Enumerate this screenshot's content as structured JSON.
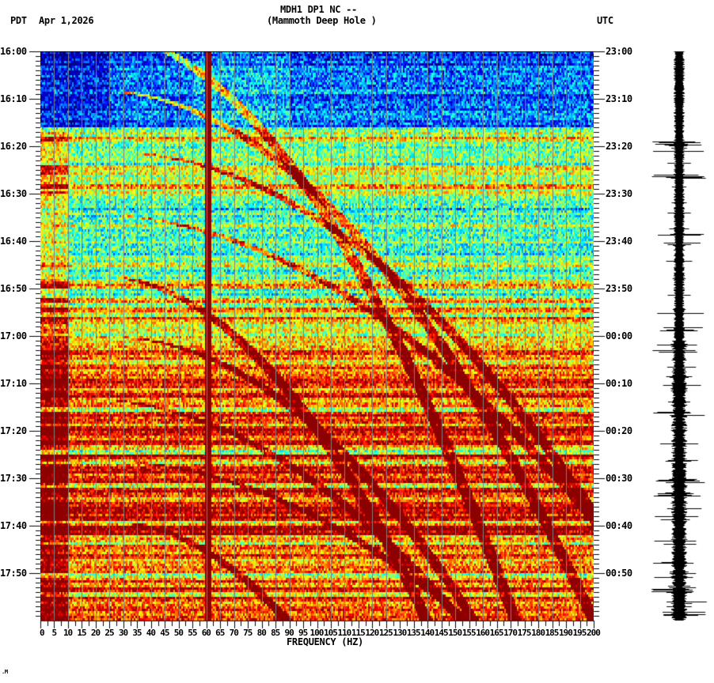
{
  "header": {
    "station_line": "MDH1 DP1 NC --",
    "station_name": "(Mammoth Deep Hole )",
    "left_tz": "PDT",
    "date": "Apr 1,2026",
    "right_tz": "UTC"
  },
  "footer": {
    "corner_mark": "ᴺ"
  },
  "colors": {
    "background": "#ffffff",
    "gridline": "#808080",
    "line60hz": "#800000",
    "axis": "#000000",
    "colormap": [
      "#0000ff",
      "#0080ff",
      "#00ffff",
      "#80ff80",
      "#ffff00",
      "#ff8000",
      "#ff0000",
      "#800000"
    ]
  },
  "chart_data": {
    "type": "heatmap",
    "title": "MDH1 DP1 NC -- (Mammoth Deep Hole )",
    "xlabel": "FREQUENCY (HZ)",
    "ylabel_left": "PDT",
    "ylabel_right": "UTC",
    "xlim": [
      0,
      200
    ],
    "x_ticks": [
      0,
      5,
      10,
      15,
      20,
      25,
      30,
      35,
      40,
      45,
      50,
      55,
      60,
      65,
      70,
      75,
      80,
      85,
      90,
      95,
      100,
      105,
      110,
      115,
      120,
      125,
      130,
      135,
      140,
      145,
      150,
      155,
      160,
      165,
      170,
      175,
      180,
      185,
      190,
      195,
      200
    ],
    "x_tick_labels": [
      "0",
      "5",
      "10",
      "15",
      "20",
      "25",
      "30",
      "35",
      "40",
      "45",
      "50",
      "55",
      "60",
      "65",
      "70",
      "75",
      "80",
      "85",
      "90",
      "95",
      "100",
      "105",
      "110",
      "115",
      "120",
      "125",
      "130",
      "135",
      "140",
      "145",
      "150",
      "155",
      "160",
      "165",
      "170",
      "175",
      "180",
      "185",
      "190",
      "195",
      "200"
    ],
    "y_left_labels": [
      "16:00",
      "16:10",
      "16:20",
      "16:30",
      "16:40",
      "16:50",
      "17:00",
      "17:10",
      "17:20",
      "17:30",
      "17:40",
      "17:50"
    ],
    "y_right_labels": [
      "23:00",
      "23:10",
      "23:20",
      "23:30",
      "23:40",
      "23:50",
      "00:00",
      "00:10",
      "00:20",
      "00:30",
      "00:40",
      "00:50"
    ],
    "time_span_minutes": 120,
    "grid": "vertical every 5 Hz",
    "persistent_line_hz": 60,
    "row_levels_by_minute": [
      0.18,
      0.2,
      0.18,
      0.2,
      0.22,
      0.2,
      0.18,
      0.2,
      0.22,
      0.2,
      0.2,
      0.18,
      0.2,
      0.22,
      0.2,
      0.2,
      0.45,
      0.55,
      0.7,
      0.45,
      0.45,
      0.5,
      0.55,
      0.45,
      0.6,
      0.55,
      0.5,
      0.6,
      0.72,
      0.55,
      0.5,
      0.4,
      0.45,
      0.35,
      0.45,
      0.42,
      0.5,
      0.45,
      0.42,
      0.5,
      0.45,
      0.4,
      0.42,
      0.45,
      0.5,
      0.55,
      0.45,
      0.5,
      0.6,
      0.75,
      0.5,
      0.45,
      0.72,
      0.5,
      0.85,
      0.55,
      0.75,
      0.65,
      0.55,
      0.6,
      0.7,
      0.62,
      0.66,
      0.9,
      0.72,
      0.7,
      0.8,
      0.74,
      0.78,
      0.92,
      0.8,
      0.72,
      0.95,
      0.75,
      0.8,
      0.5,
      0.9,
      0.88,
      0.75,
      0.95,
      0.9,
      0.8,
      0.96,
      0.72,
      0.55,
      0.95,
      0.62,
      0.85,
      0.95,
      0.75,
      0.95,
      0.65,
      0.95,
      0.78,
      0.7,
      0.85,
      0.96,
      0.92,
      0.95,
      0.65,
      0.98,
      0.96,
      0.7,
      0.6,
      0.8,
      0.65,
      0.85,
      0.7,
      0.75,
      0.85,
      0.55,
      0.8,
      0.7,
      0.95,
      0.6,
      0.82,
      0.72,
      0.78,
      0.8,
      0.85
    ],
    "chirp_curves_note": "diagonal high-energy tracks sweeping from low to high frequency over time"
  },
  "seismogram": {
    "label": "waveform trace",
    "burst_minutes": [
      19,
      21,
      26,
      38,
      40,
      49,
      55,
      58,
      61,
      63,
      66,
      70,
      72,
      76,
      80,
      82,
      86,
      90,
      93,
      96,
      98,
      101,
      103,
      107,
      110,
      113,
      116,
      118
    ]
  }
}
